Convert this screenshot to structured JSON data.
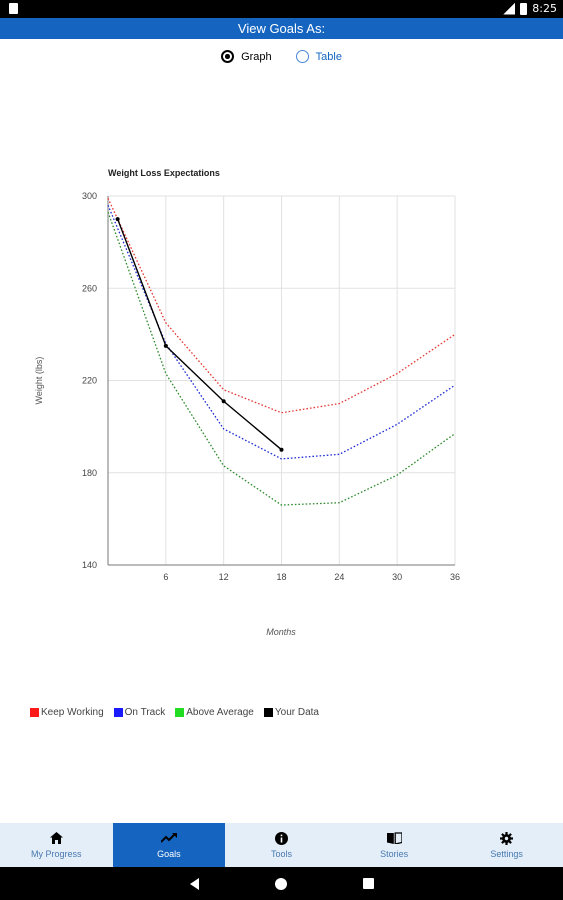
{
  "status_bar": {
    "time": "8:25"
  },
  "header": {
    "title": "View Goals As:"
  },
  "view_toggle": {
    "options": [
      {
        "label": "Graph",
        "selected": true
      },
      {
        "label": "Table",
        "selected": false
      }
    ]
  },
  "chart_data": {
    "type": "line",
    "title": "Weight Loss Expectations",
    "xlabel": "Months",
    "ylabel": "Weight (lbs)",
    "xlim": [
      0,
      36
    ],
    "ylim": [
      140,
      300
    ],
    "x_ticks": [
      6,
      12,
      18,
      24,
      30,
      36
    ],
    "y_ticks": [
      140,
      180,
      220,
      260,
      300
    ],
    "grid": true,
    "legend_position": "bottom-left",
    "series": [
      {
        "name": "Keep Working",
        "color": "#e53935",
        "style": "dotted",
        "x": [
          0,
          6,
          12,
          18,
          24,
          30,
          36
        ],
        "y": [
          299,
          245,
          216,
          206,
          210,
          223,
          240
        ]
      },
      {
        "name": "On Track",
        "color": "#1e2bd6",
        "style": "dotted",
        "x": [
          0,
          6,
          12,
          18,
          24,
          30,
          36
        ],
        "y": [
          296,
          236,
          199,
          186,
          188,
          201,
          218
        ]
      },
      {
        "name": "Above Average",
        "color": "#2e8b2e",
        "style": "dotted",
        "x": [
          0,
          6,
          12,
          18,
          24,
          30,
          36
        ],
        "y": [
          293,
          223,
          183,
          166,
          167,
          179,
          197
        ]
      },
      {
        "name": "Your Data",
        "color": "#000000",
        "style": "solid",
        "x": [
          1,
          6,
          12,
          18
        ],
        "y": [
          290,
          235,
          211,
          190
        ]
      }
    ]
  },
  "legend": [
    {
      "label": "Keep Working",
      "color": "#ff1a1a"
    },
    {
      "label": "On Track",
      "color": "#1a1aff"
    },
    {
      "label": "Above Average",
      "color": "#22dd22"
    },
    {
      "label": "Your Data",
      "color": "#000000"
    }
  ],
  "bottom_nav": [
    {
      "label": "My Progress",
      "icon": "home-icon",
      "active": false
    },
    {
      "label": "Goals",
      "icon": "trend-icon",
      "active": true
    },
    {
      "label": "Tools",
      "icon": "info-icon",
      "active": false
    },
    {
      "label": "Stories",
      "icon": "book-icon",
      "active": false
    },
    {
      "label": "Settings",
      "icon": "gear-icon",
      "active": false
    }
  ]
}
